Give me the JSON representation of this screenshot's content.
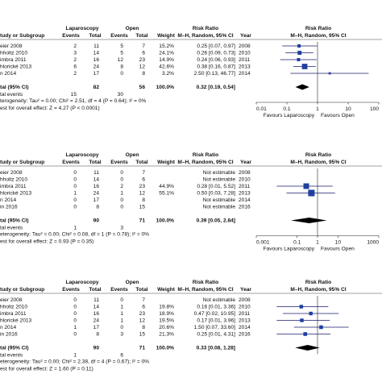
{
  "panels": [
    {
      "header": {
        "group1": "Laparoscopy",
        "group2": "Open",
        "rr_title": "Risk Ratio",
        "plot_title": "Risk Ratio"
      },
      "columns": [
        "tudy or Subgroup",
        "Events",
        "Total",
        "Events",
        "Total",
        "Weight",
        "M–H, Random, 95% CI",
        "Year",
        "M–H, Random, 95% CI"
      ],
      "rows": [
        {
          "study": "eier 2008",
          "e1": 2,
          "n1": 11,
          "e2": 5,
          "n2": 7,
          "weight": {
            "value": 15.2,
            "label": "15.2%"
          },
          "rr": 0.25,
          "lo": 0.07,
          "hi": 0.97,
          "ci_label": "0.25 [0.07, 0.97]",
          "year": 2008
        },
        {
          "study": "hholtz 2010",
          "e1": 3,
          "n1": 14,
          "e2": 5,
          "n2": 6,
          "weight": {
            "value": 24.1,
            "label": "24.1%"
          },
          "rr": 0.26,
          "lo": 0.09,
          "hi": 0.73,
          "ci_label": "0.26 [0.09, 0.73]",
          "year": 2010
        },
        {
          "study": "imbra 2011",
          "e1": 2,
          "n1": 16,
          "e2": 12,
          "n2": 23,
          "weight": {
            "value": 14.9,
            "label": "14.9%"
          },
          "rr": 0.24,
          "lo": 0.06,
          "hi": 0.93,
          "ci_label": "0.24 [0.06, 0.93]",
          "year": 2011
        },
        {
          "study": "hlorické 2013",
          "e1": 6,
          "n1": 24,
          "e2": 8,
          "n2": 12,
          "weight": {
            "value": 42.6,
            "label": "42.6%"
          },
          "rr": 0.38,
          "lo": 0.16,
          "hi": 0.87,
          "ci_label": "0.38 [0.16, 0.87]",
          "year": 2013
        },
        {
          "study": "n 2014",
          "e1": 2,
          "n1": 17,
          "e2": 0,
          "n2": 8,
          "weight": {
            "value": 3.2,
            "label": "3.2%"
          },
          "rr": 2.5,
          "lo": 0.13,
          "hi": 46.77,
          "ci_label": "2.50 [0.13, 46.77]",
          "year": 2014
        }
      ],
      "total": {
        "label": "tal (95% CI)",
        "n1": 82,
        "n2": 56,
        "weight": {
          "value": 100,
          "label": "100.0%"
        },
        "rr": 0.32,
        "lo": 0.19,
        "hi": 0.54,
        "ci_label": "0.32 [0.19, 0.54]"
      },
      "events": {
        "label": "tal events",
        "e1": 15,
        "e2": 30
      },
      "heterogeneity": "terogeneity: Tau² = 0.00; Chi² = 2.51, df = 4 (P = 0.64); I² = 0%",
      "overall": "est for overall effect: Z = 4.27 (P < 0.0001)",
      "axis": {
        "xticks": [
          0.01,
          0.1,
          1,
          10,
          100
        ],
        "left": "Favours Laparoscopy",
        "right": "Favours Open"
      }
    },
    {
      "header": {
        "group1": "Laparoscopy",
        "group2": "Open",
        "rr_title": "Risk Ratio",
        "plot_title": "Risk Ratio"
      },
      "columns": [
        "tudy or Subgroup",
        "Events",
        "Total",
        "Events",
        "Total",
        "Weight",
        "M–H, Random, 95% CI",
        "Year",
        "M–H, Random, 95% CI"
      ],
      "rows": [
        {
          "study": "eier 2008",
          "e1": 0,
          "n1": 11,
          "e2": 0,
          "n2": 7,
          "weight": null,
          "rr": null,
          "lo": null,
          "hi": null,
          "ci_label": "Not estimable",
          "year": 2008
        },
        {
          "study": "hholtz 2010",
          "e1": 0,
          "n1": 14,
          "e2": 0,
          "n2": 6,
          "weight": null,
          "rr": null,
          "lo": null,
          "hi": null,
          "ci_label": "Not estimable",
          "year": 2010
        },
        {
          "study": "imbra 2011",
          "e1": 0,
          "n1": 16,
          "e2": 2,
          "n2": 23,
          "weight": {
            "value": 44.9,
            "label": "44.9%"
          },
          "rr": 0.28,
          "lo": 0.01,
          "hi": 5.52,
          "ci_label": "0.28 [0.01, 5.52]",
          "year": 2011
        },
        {
          "study": "hlorické 2013",
          "e1": 1,
          "n1": 24,
          "e2": 1,
          "n2": 12,
          "weight": {
            "value": 55.1,
            "label": "55.1%"
          },
          "rr": 0.5,
          "lo": 0.03,
          "hi": 7.28,
          "ci_label": "0.50 [0.03, 7.28]",
          "year": 2013
        },
        {
          "study": "n 2014",
          "e1": 0,
          "n1": 17,
          "e2": 0,
          "n2": 8,
          "weight": null,
          "rr": null,
          "lo": null,
          "hi": null,
          "ci_label": "Not estimable",
          "year": 2014
        },
        {
          "study": "in 2016",
          "e1": 0,
          "n1": 8,
          "e2": 0,
          "n2": 15,
          "weight": null,
          "rr": null,
          "lo": null,
          "hi": null,
          "ci_label": "Not estimable",
          "year": 2016
        }
      ],
      "total": {
        "label": "tal (95% CI)",
        "n1": 90,
        "n2": 71,
        "weight": {
          "value": 100,
          "label": "100.0%"
        },
        "rr": 0.39,
        "lo": 0.05,
        "hi": 2.84,
        "ci_label": "0.39 [0.05, 2.84]"
      },
      "events": {
        "label": "tal events",
        "e1": 1,
        "e2": 3
      },
      "heterogeneity": "eterogeneity: Tau² = 0.00; Chi² = 0.08, df = 1 (P = 0.78); I² = 0%",
      "overall": "est for overall effect: Z = 0.93 (P = 0.35)",
      "axis": {
        "xticks": [
          0.001,
          0.1,
          1,
          10,
          1000
        ],
        "left": "Favours Laparoscopy",
        "right": "Favours Open"
      }
    },
    {
      "header": {
        "group1": "Laparoscopy",
        "group2": "Open",
        "rr_title": "Risk Ratio",
        "plot_title": "Risk Ratio"
      },
      "columns": [
        "tudy or Subgroup",
        "Events",
        "Total",
        "Events",
        "Total",
        "Weight",
        "M–H, Random, 95% CI",
        "Year",
        "M–H, Random, 95% CI"
      ],
      "rows": [
        {
          "study": "eier 2008",
          "e1": 0,
          "n1": 11,
          "e2": 0,
          "n2": 7,
          "weight": null,
          "rr": null,
          "lo": null,
          "hi": null,
          "ci_label": "Not estimable",
          "year": 2008
        },
        {
          "study": "hholtz 2010",
          "e1": 0,
          "n1": 14,
          "e2": 1,
          "n2": 6,
          "weight": {
            "value": 19.8,
            "label": "19.8%"
          },
          "rr": 0.16,
          "lo": 0.01,
          "hi": 3.36,
          "ci_label": "0.16 [0.01, 3.36]",
          "year": 2010
        },
        {
          "study": "imbra 2011",
          "e1": 0,
          "n1": 16,
          "e2": 1,
          "n2": 23,
          "weight": {
            "value": 18.9,
            "label": "18.9%"
          },
          "rr": 0.47,
          "lo": 0.02,
          "hi": 10.95,
          "ci_label": "0.47 [0.02, 10.95]",
          "year": 2011
        },
        {
          "study": "hlorické 2013",
          "e1": 0,
          "n1": 24,
          "e2": 1,
          "n2": 12,
          "weight": {
            "value": 19.5,
            "label": "19.5%"
          },
          "rr": 0.17,
          "lo": 0.01,
          "hi": 3.96,
          "ci_label": "0.17 [0.01, 3.96]",
          "year": 2013
        },
        {
          "study": "n 2014",
          "e1": 1,
          "n1": 17,
          "e2": 0,
          "n2": 8,
          "weight": {
            "value": 20.6,
            "label": "20.6%"
          },
          "rr": 1.5,
          "lo": 0.07,
          "hi": 33.6,
          "ci_label": "1.50 [0.07, 33.60]",
          "year": 2014
        },
        {
          "study": "in 2016",
          "e1": 0,
          "n1": 8,
          "e2": 3,
          "n2": 15,
          "weight": {
            "value": 21.3,
            "label": "21.3%"
          },
          "rr": 0.25,
          "lo": 0.01,
          "hi": 4.31,
          "ci_label": "0.25 [0.01, 4.31]",
          "year": 2016
        }
      ],
      "total": {
        "label": "tal (95% CI)",
        "n1": 90,
        "n2": 71,
        "weight": {
          "value": 100,
          "label": "100.0%"
        },
        "rr": 0.33,
        "lo": 0.08,
        "hi": 1.28,
        "ci_label": "0.33 [0.08, 1.28]"
      },
      "events": {
        "label": "tal events",
        "e1": 1,
        "e2": 6
      },
      "heterogeneity": "eterogeneity: Tau² = 0.00; Chi² = 2.38, df = 4 (P = 0.67); I² = 0%",
      "overall": "est for overall effect: Z = 1.60 (P = 0.11)",
      "axis": {
        "xlim": [
          0.001,
          1000
        ]
      }
    }
  ]
}
